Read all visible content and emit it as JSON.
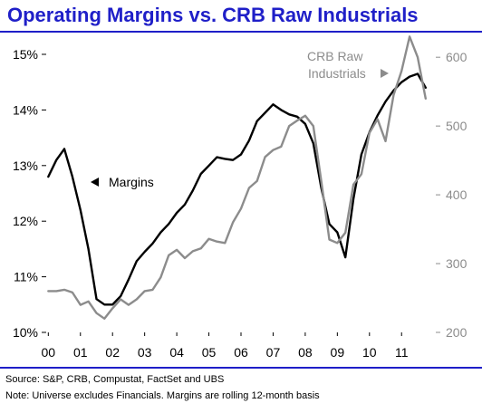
{
  "title": "Operating Margins vs. CRB Raw Industrials",
  "footnotes": {
    "source": "Source: S&P, CRB, Compustat, FactSet and UBS",
    "note": "Note: Universe excludes Financials.  Margins are rolling 12-month basis"
  },
  "colors": {
    "title": "#1f1fc8",
    "rule": "#1f1fc8",
    "margins_line": "#000000",
    "crb_line": "#8c8c8c",
    "crb_label": "#8c8c8c"
  },
  "chart_data": {
    "type": "line",
    "x_tick_labels": [
      "00",
      "01",
      "02",
      "03",
      "04",
      "05",
      "06",
      "07",
      "08",
      "09",
      "10",
      "11"
    ],
    "x_ticks": [
      2000,
      2001,
      2002,
      2003,
      2004,
      2005,
      2006,
      2007,
      2008,
      2009,
      2010,
      2011
    ],
    "xlim": [
      1999.85,
      2012.15
    ],
    "y_left": {
      "ticks": [
        10,
        11,
        12,
        13,
        14,
        15
      ],
      "tick_labels": [
        "10%",
        "11%",
        "12%",
        "13%",
        "14%",
        "15%"
      ],
      "lim": [
        10,
        15
      ]
    },
    "y_right": {
      "ticks": [
        200,
        300,
        400,
        500,
        600
      ],
      "tick_labels": [
        "200",
        "300",
        "400",
        "500",
        "600"
      ],
      "lim": [
        200,
        620
      ]
    },
    "grid": false,
    "series": [
      {
        "name": "Margins",
        "axis": "left",
        "label_text": "Margins",
        "x": [
          2000.0,
          2000.25,
          2000.5,
          2000.75,
          2001.0,
          2001.25,
          2001.5,
          2001.75,
          2002.0,
          2002.25,
          2002.5,
          2002.75,
          2003.0,
          2003.25,
          2003.5,
          2003.75,
          2004.0,
          2004.25,
          2004.5,
          2004.75,
          2005.0,
          2005.25,
          2005.5,
          2005.75,
          2006.0,
          2006.25,
          2006.5,
          2006.75,
          2007.0,
          2007.25,
          2007.5,
          2007.75,
          2008.0,
          2008.25,
          2008.5,
          2008.75,
          2009.0,
          2009.25,
          2009.5,
          2009.75,
          2010.0,
          2010.25,
          2010.5,
          2010.75,
          2011.0,
          2011.25,
          2011.5,
          2011.75
        ],
        "y": [
          12.8,
          13.1,
          13.3,
          12.8,
          12.2,
          11.5,
          10.6,
          10.5,
          10.5,
          10.65,
          10.95,
          11.28,
          11.45,
          11.6,
          11.8,
          11.95,
          12.15,
          12.3,
          12.55,
          12.85,
          13.0,
          13.15,
          13.12,
          13.1,
          13.2,
          13.45,
          13.8,
          13.95,
          14.1,
          14.0,
          13.92,
          13.88,
          13.75,
          13.4,
          12.6,
          11.95,
          11.8,
          11.35,
          12.4,
          13.2,
          13.6,
          13.9,
          14.15,
          14.35,
          14.5,
          14.6,
          14.65,
          14.4
        ]
      },
      {
        "name": "CRB Raw Industrials",
        "axis": "right",
        "label_text": "CRB Raw Industrials",
        "x": [
          2000.0,
          2000.25,
          2000.5,
          2000.75,
          2001.0,
          2001.25,
          2001.5,
          2001.75,
          2002.0,
          2002.25,
          2002.5,
          2002.75,
          2003.0,
          2003.25,
          2003.5,
          2003.75,
          2004.0,
          2004.25,
          2004.5,
          2004.75,
          2005.0,
          2005.25,
          2005.5,
          2005.75,
          2006.0,
          2006.25,
          2006.5,
          2006.75,
          2007.0,
          2007.25,
          2007.5,
          2007.75,
          2008.0,
          2008.25,
          2008.5,
          2008.75,
          2009.0,
          2009.25,
          2009.5,
          2009.75,
          2010.0,
          2010.25,
          2010.5,
          2010.75,
          2011.0,
          2011.25,
          2011.5,
          2011.75
        ],
        "y": [
          260,
          260,
          262,
          258,
          240,
          245,
          228,
          220,
          235,
          248,
          240,
          248,
          260,
          262,
          280,
          312,
          320,
          308,
          318,
          322,
          336,
          332,
          330,
          360,
          380,
          410,
          420,
          455,
          465,
          470,
          500,
          508,
          515,
          500,
          420,
          335,
          330,
          345,
          415,
          430,
          490,
          510,
          478,
          545,
          580,
          630,
          600,
          540
        ]
      }
    ],
    "annotations": [
      {
        "text": "Margins",
        "arrow": "left"
      },
      {
        "text": "CRB Raw Industrials",
        "lines": [
          "CRB Raw",
          "Industrials"
        ],
        "arrow": "right"
      }
    ]
  }
}
